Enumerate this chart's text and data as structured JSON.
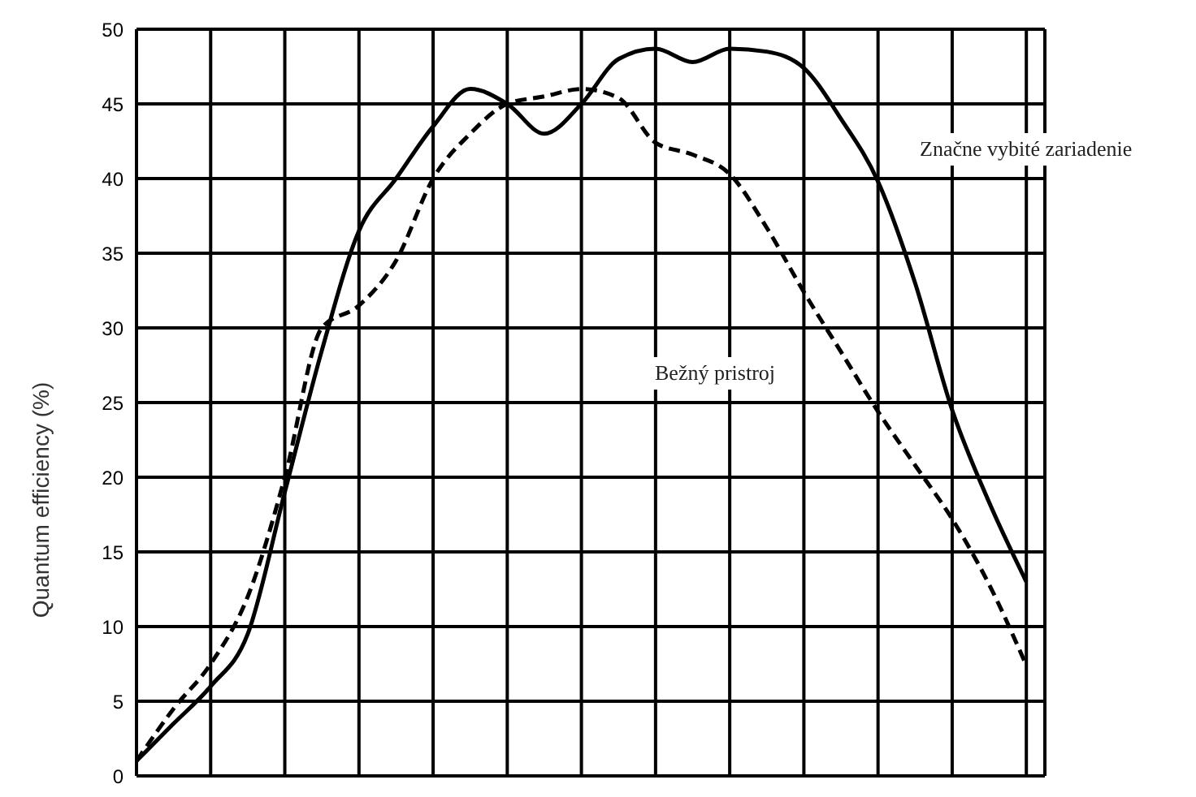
{
  "chart_data": {
    "type": "line",
    "ylabel": "Quantum efficiency (%)",
    "categories": [
      null,
      null,
      null,
      null,
      null,
      null,
      null,
      null,
      null,
      null,
      null,
      null,
      null,
      null,
      null,
      null,
      null,
      null,
      null,
      null,
      null,
      null,
      null,
      null,
      null
    ],
    "series": [
      {
        "name": "Značne vybité zariadenie",
        "color": "#000000",
        "line_style": "solid",
        "values": [
          1,
          3.5,
          6,
          9.5,
          19,
          28.5,
          36.5,
          40,
          43.5,
          46,
          45,
          43,
          45,
          48,
          48.7,
          47.8,
          48.7,
          48.5,
          47.4,
          44,
          39.8,
          33,
          24.5,
          18.3,
          13
        ]
      },
      {
        "name": "Bežný pristroj",
        "color": "#000000",
        "line_style": "dashed",
        "values": [
          1,
          4.5,
          7.5,
          12,
          20,
          30,
          31.5,
          34.5,
          40,
          43,
          45,
          45.5,
          46,
          45.4,
          42.4,
          41.6,
          40.3,
          36.7,
          32.4,
          28.4,
          24.4,
          20.8,
          17.2,
          12.8,
          7.4
        ]
      }
    ],
    "ylim": [
      0,
      50
    ],
    "yticks": [
      0,
      5,
      10,
      15,
      20,
      25,
      30,
      35,
      40,
      45,
      50
    ],
    "grid": true,
    "marker": "none"
  }
}
